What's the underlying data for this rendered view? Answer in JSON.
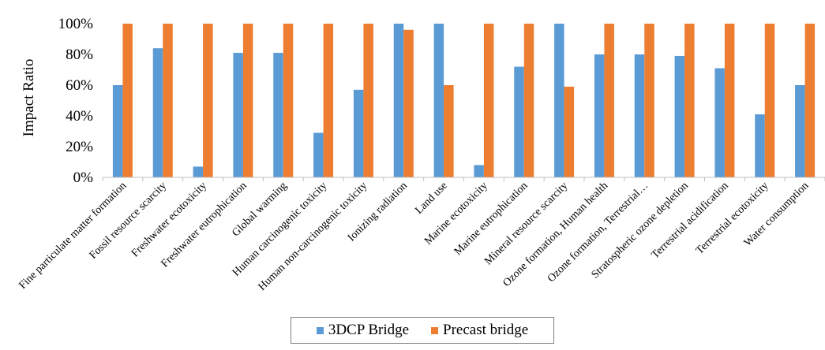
{
  "chart_data": {
    "type": "bar",
    "ylabel": "Impact Ratio",
    "xlabel": "",
    "ylim": [
      0,
      100
    ],
    "yticks": [
      "0%",
      "20%",
      "40%",
      "60%",
      "80%",
      "100%"
    ],
    "grid": false,
    "legend_position": "bottom",
    "categories": [
      "Fine particulate matter formation",
      "Fossil resource scarcity",
      "Freshwater ecotoxicity",
      "Freshwater eutrophication",
      "Global warming",
      "Human carcinogenic toxicity",
      "Human non-carcinogenic toxicity",
      "Ionizing radiation",
      "Land use",
      "Marine ecotoxicity",
      "Marine eutrophication",
      "Mineral resource scarcity",
      "Ozone formation, Human health",
      "Ozone formation, Terrestrial…",
      "Stratospheric ozone depletion",
      "Terrestrial acidification",
      "Terrestrial ecotoxicity",
      "Water consumption"
    ],
    "series": [
      {
        "name": "3DCP Bridge",
        "color": "#5b9bd5",
        "values": [
          60,
          84,
          7,
          81,
          81,
          29,
          57,
          100,
          100,
          8,
          72,
          100,
          80,
          80,
          79,
          71,
          41,
          60
        ]
      },
      {
        "name": "Precast bridge",
        "color": "#ed7d31",
        "values": [
          100,
          100,
          100,
          100,
          100,
          100,
          100,
          96,
          60,
          100,
          100,
          59,
          100,
          100,
          100,
          100,
          100,
          100
        ]
      }
    ]
  }
}
